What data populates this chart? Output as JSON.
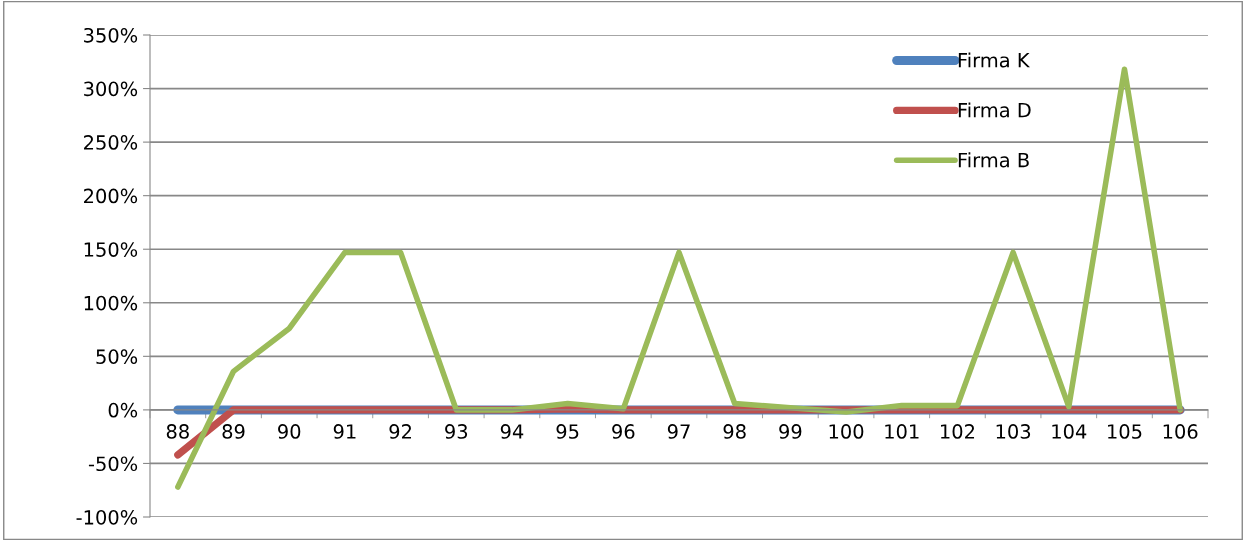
{
  "chart_data": {
    "type": "line",
    "categories": [
      "88",
      "89",
      "90",
      "91",
      "92",
      "93",
      "94",
      "95",
      "96",
      "97",
      "98",
      "99",
      "100",
      "101",
      "102",
      "103",
      "104",
      "105",
      "106"
    ],
    "series": [
      {
        "name": "Firma K",
        "color": "#4f81bd",
        "values": [
          0,
          0,
          0,
          0,
          0,
          0,
          0,
          0,
          0,
          0,
          0,
          0,
          0,
          0,
          0,
          0,
          0,
          0,
          0
        ]
      },
      {
        "name": "Firma D",
        "color": "#c0504d",
        "values": [
          -42,
          0,
          0,
          0,
          0,
          0,
          0,
          1,
          0,
          0,
          0,
          0,
          0,
          0,
          0,
          0,
          0,
          0,
          0
        ]
      },
      {
        "name": "Firma B",
        "color": "#9bbb59",
        "values": [
          -72,
          36,
          76,
          147,
          147,
          0,
          0,
          6,
          1,
          147,
          6,
          2,
          -2,
          4,
          4,
          147,
          3,
          318,
          0
        ]
      }
    ],
    "ylim": [
      -100,
      350
    ],
    "yticks": [
      {
        "value": -100,
        "label": "-100%"
      },
      {
        "value": -50,
        "label": "-50%"
      },
      {
        "value": 0,
        "label": "0%"
      },
      {
        "value": 50,
        "label": "50%"
      },
      {
        "value": 100,
        "label": "100%"
      },
      {
        "value": 150,
        "label": "150%"
      },
      {
        "value": 200,
        "label": "200%"
      },
      {
        "value": 250,
        "label": "250%"
      },
      {
        "value": 300,
        "label": "300%"
      },
      {
        "value": 350,
        "label": "350%"
      }
    ],
    "grid": "y",
    "legend": "top right",
    "marker": "none",
    "line_style": "solid"
  }
}
